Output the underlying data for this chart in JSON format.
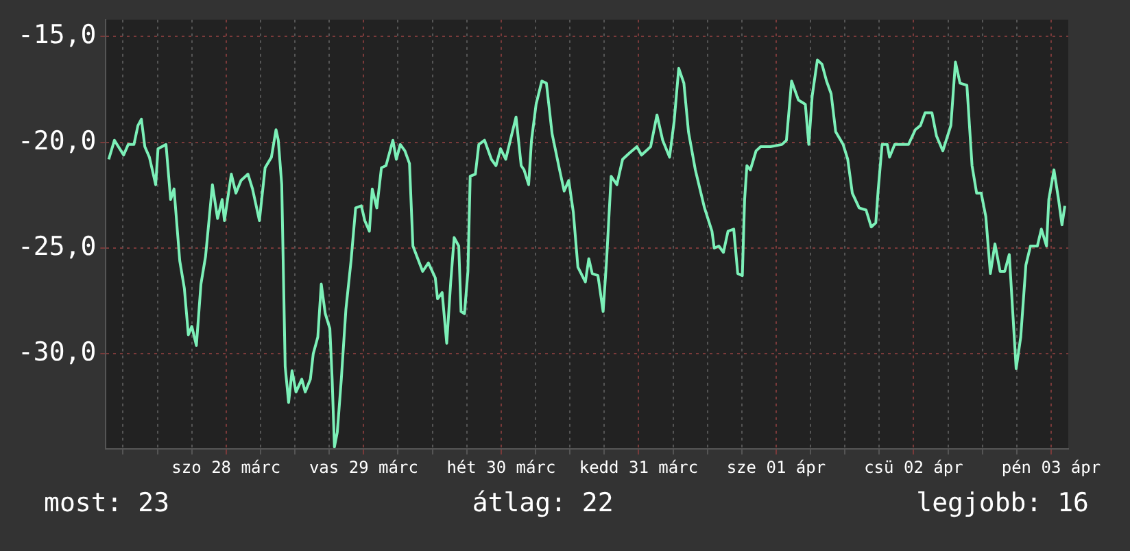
{
  "chart_data": {
    "type": "line",
    "x": [
      "--03-27T15:30",
      "--03-27T16:30",
      "--03-27T18:06",
      "--03-27T18:54",
      "--03-27T19:54",
      "--03-27T20:36",
      "--03-27T21:12",
      "--03-27T21:48",
      "--03-27T22:36",
      "--03-27T23:42",
      "--03-28T00:06",
      "--03-28T01:30",
      "--03-28T02:18",
      "--03-28T02:54",
      "--03-28T03:54",
      "--03-28T04:42",
      "--03-28T05:24",
      "--03-28T06:00",
      "--03-28T06:48",
      "--03-28T07:36",
      "--03-28T08:24",
      "--03-28T09:36",
      "--03-28T10:30",
      "--03-28T11:18",
      "--03-28T11:42",
      "--03-28T12:54",
      "--03-28T13:42",
      "--03-28T14:36",
      "--03-28T15:48",
      "--03-28T16:36",
      "--03-28T17:48",
      "--03-28T18:48",
      "--03-28T19:54",
      "--03-28T20:42",
      "--03-28T21:06",
      "--03-28T21:42",
      "--03-28T22:18",
      "--03-28T22:54",
      "--03-28T23:30",
      "--03-29T00:12",
      "--03-29T01:12",
      "--03-29T01:48",
      "--03-29T02:42",
      "--03-29T03:12",
      "--03-29T04:00",
      "--03-29T04:36",
      "--03-29T05:18",
      "--03-29T06:06",
      "--03-29T06:30",
      "--03-29T06:54",
      "--03-29T07:24",
      "--03-29T08:06",
      "--03-29T08:54",
      "--03-29T09:48",
      "--03-29T10:36",
      "--03-29T11:36",
      "--03-29T12:12",
      "--03-29T13:00",
      "--03-29T13:30",
      "--03-29T14:18",
      "--03-29T15:06",
      "--03-29T15:54",
      "--03-29T17:06",
      "--03-29T17:42",
      "--03-29T18:24",
      "--03-29T19:12",
      "--03-29T20:00",
      "--03-29T20:36",
      "--03-29T22:18",
      "--03-29T23:18",
      "--03-30T00:30",
      "--03-30T00:54",
      "--03-30T01:42",
      "--03-30T02:30",
      "--03-30T03:12",
      "--03-30T03:48",
      "--03-30T04:36",
      "--03-30T05:00",
      "--03-30T05:36",
      "--03-30T06:12",
      "--03-30T06:36",
      "--03-30T07:30",
      "--03-30T08:06",
      "--03-30T09:06",
      "--03-30T10:18",
      "--03-30T11:06",
      "--03-30T11:54",
      "--03-30T12:48",
      "--03-30T13:36",
      "--03-30T14:36",
      "--03-30T15:30",
      "--03-30T16:00",
      "--03-30T16:48",
      "--03-30T17:18",
      "--03-30T18:06",
      "--03-30T19:06",
      "--03-30T19:54",
      "--03-30T20:54",
      "--03-30T22:12",
      "--03-30T23:00",
      "--03-30T23:48",
      "--03-31T00:36",
      "--03-31T01:24",
      "--03-31T02:42",
      "--03-31T03:18",
      "--03-31T03:54",
      "--03-31T04:54",
      "--03-31T05:48",
      "--03-31T06:24",
      "--03-31T07:12",
      "--03-31T08:12",
      "--03-31T09:12",
      "--03-31T10:24",
      "--03-31T11:42",
      "--03-31T12:30",
      "--03-31T14:06",
      "--03-31T15:12",
      "--03-31T16:12",
      "--03-31T17:24",
      "--03-31T18:12",
      "--03-31T19:00",
      "--03-31T19:54",
      "--03-31T20:42",
      "--03-31T21:54",
      "--03-31T22:42",
      "--03-31T23:30",
      "--04-01T00:48",
      "--04-01T01:12",
      "--04-01T02:00",
      "--04-01T02:48",
      "--04-01T03:36",
      "--04-01T04:36",
      "--04-01T05:18",
      "--04-01T06:06",
      "--04-01T06:30",
      "--04-01T06:54",
      "--04-01T07:30",
      "--04-01T08:30",
      "--04-01T09:18",
      "--04-01T11:00",
      "--04-01T13:00",
      "--04-01T13:48",
      "--04-01T14:42",
      "--04-01T15:54",
      "--04-01T17:06",
      "--04-01T17:42",
      "--04-01T18:18",
      "--04-01T19:12",
      "--04-01T20:00",
      "--04-01T20:48",
      "--04-01T21:36",
      "--04-01T22:24",
      "--04-01T23:42",
      "--04-02T00:30",
      "--04-02T01:18",
      "--04-02T02:30",
      "--04-02T03:42",
      "--04-02T04:36",
      "--04-02T05:24",
      "--04-02T05:48",
      "--04-02T06:30",
      "--04-02T07:24",
      "--04-02T07:48",
      "--04-02T08:42",
      "--04-02T11:06",
      "--04-02T12:18",
      "--04-02T13:12",
      "--04-02T14:00",
      "--04-02T15:12",
      "--04-02T16:00",
      "--04-02T17:06",
      "--04-02T18:30",
      "--04-02T19:18",
      "--04-02T20:06",
      "--04-02T21:18",
      "--04-02T22:12",
      "--04-02T23:00",
      "--04-02T23:48",
      "--04-03T00:36",
      "--04-03T01:24",
      "--04-03T02:12",
      "--04-03T03:06",
      "--04-03T03:54",
      "--04-03T04:42",
      "--04-03T05:06",
      "--04-03T05:54",
      "--04-03T06:42",
      "--04-03T07:36",
      "--04-03T08:24",
      "--04-03T09:36",
      "--04-03T10:18",
      "--04-03T11:12",
      "--04-03T11:36",
      "--04-03T12:30",
      "--04-03T13:18",
      "--04-03T13:54",
      "--04-03T14:24"
    ],
    "series": [
      {
        "color": "#7cf0b8",
        "values": [
          -20.8,
          -19.9,
          -20.6,
          -20.1,
          -20.1,
          -19.2,
          -18.9,
          -20.2,
          -20.7,
          -22.0,
          -20.3,
          -20.1,
          -22.7,
          -22.2,
          -25.6,
          -26.9,
          -29.1,
          -28.7,
          -29.6,
          -26.7,
          -25.4,
          -22.0,
          -23.6,
          -22.7,
          -23.7,
          -21.5,
          -22.4,
          -21.8,
          -21.5,
          -22.2,
          -23.7,
          -21.2,
          -20.7,
          -19.4,
          -19.9,
          -22.0,
          -30.6,
          -32.3,
          -30.8,
          -31.8,
          -31.2,
          -31.8,
          -31.2,
          -30.0,
          -29.2,
          -26.7,
          -28.1,
          -28.8,
          -31.2,
          -34.4,
          -33.7,
          -31.2,
          -27.9,
          -25.6,
          -23.1,
          -23.0,
          -23.7,
          -24.2,
          -22.2,
          -23.1,
          -21.2,
          -21.1,
          -19.9,
          -20.8,
          -20.1,
          -20.4,
          -21.0,
          -24.9,
          -26.1,
          -25.7,
          -26.4,
          -27.4,
          -27.1,
          -29.5,
          -26.6,
          -24.5,
          -24.9,
          -28.0,
          -28.1,
          -26.1,
          -21.6,
          -21.5,
          -20.1,
          -19.9,
          -20.8,
          -21.1,
          -20.3,
          -20.8,
          -19.9,
          -18.8,
          -21.1,
          -21.3,
          -22.0,
          -19.9,
          -18.2,
          -17.1,
          -17.2,
          -19.6,
          -21.3,
          -22.3,
          -21.8,
          -23.3,
          -25.9,
          -26.6,
          -25.5,
          -26.2,
          -26.3,
          -28.0,
          -25.6,
          -21.6,
          -22.0,
          -20.8,
          -20.5,
          -20.2,
          -20.6,
          -20.2,
          -18.7,
          -19.9,
          -20.7,
          -19.0,
          -16.5,
          -17.2,
          -19.5,
          -21.3,
          -22.2,
          -23.1,
          -24.2,
          -25.0,
          -24.9,
          -25.2,
          -24.2,
          -24.1,
          -26.2,
          -26.3,
          -22.7,
          -21.1,
          -21.3,
          -20.4,
          -20.2,
          -20.2,
          -20.1,
          -19.9,
          -17.1,
          -18.0,
          -18.2,
          -20.1,
          -17.8,
          -16.1,
          -16.3,
          -17.1,
          -17.7,
          -19.5,
          -20.1,
          -20.8,
          -22.4,
          -23.1,
          -23.2,
          -24.0,
          -23.8,
          -22.3,
          -20.1,
          -20.1,
          -20.7,
          -20.1,
          -20.1,
          -19.4,
          -19.2,
          -18.6,
          -18.6,
          -19.7,
          -20.4,
          -19.2,
          -16.2,
          -17.2,
          -17.3,
          -21.1,
          -22.4,
          -22.4,
          -23.5,
          -26.2,
          -24.8,
          -26.1,
          -26.1,
          -25.3,
          -27.1,
          -30.7,
          -29.2,
          -25.8,
          -24.9,
          -24.9,
          -24.1,
          -24.9,
          -22.7,
          -21.3,
          -22.7,
          -23.9,
          -23.0
        ]
      }
    ],
    "xlim": [
      "--03-27T15:00",
      "--04-03T15:00"
    ],
    "xticks": [
      {
        "value": "--03-27T18:00",
        "label": null
      },
      {
        "value": "--03-28T00:00",
        "label": null
      },
      {
        "value": "--03-28T06:00",
        "label": null
      },
      {
        "value": "--03-28T12:00",
        "label": "szo 28 márc"
      },
      {
        "value": "--03-28T18:00",
        "label": null
      },
      {
        "value": "--03-29T00:00",
        "label": null
      },
      {
        "value": "--03-29T06:00",
        "label": null
      },
      {
        "value": "--03-29T12:00",
        "label": "vas 29 márc"
      },
      {
        "value": "--03-29T18:00",
        "label": null
      },
      {
        "value": "--03-30T00:00",
        "label": null
      },
      {
        "value": "--03-30T06:00",
        "label": null
      },
      {
        "value": "--03-30T12:00",
        "label": "hét 30 márc"
      },
      {
        "value": "--03-30T18:00",
        "label": null
      },
      {
        "value": "--03-31T00:00",
        "label": null
      },
      {
        "value": "--03-31T06:00",
        "label": null
      },
      {
        "value": "--03-31T12:00",
        "label": "kedd 31 márc"
      },
      {
        "value": "--03-31T18:00",
        "label": null
      },
      {
        "value": "--04-01T00:00",
        "label": null
      },
      {
        "value": "--04-01T06:00",
        "label": null
      },
      {
        "value": "--04-01T12:00",
        "label": "sze 01 ápr"
      },
      {
        "value": "--04-01T18:00",
        "label": null
      },
      {
        "value": "--04-02T00:00",
        "label": null
      },
      {
        "value": "--04-02T06:00",
        "label": null
      },
      {
        "value": "--04-02T12:00",
        "label": "csü 02 ápr"
      },
      {
        "value": "--04-02T18:00",
        "label": null
      },
      {
        "value": "--04-03T00:00",
        "label": null
      },
      {
        "value": "--04-03T06:00",
        "label": null
      },
      {
        "value": "--04-03T12:00",
        "label": "pén 03 ápr"
      }
    ],
    "ylim": [
      -34.5,
      -14.2
    ],
    "yticks": [
      {
        "value": -30,
        "label": "-30,0"
      },
      {
        "value": -25,
        "label": "-25,0"
      },
      {
        "value": -20,
        "label": "-20,0"
      },
      {
        "value": -15,
        "label": "-15,0"
      }
    ],
    "grid": true,
    "legend": false,
    "line_style": "solid",
    "annotations": [
      "most: 23",
      "átlag: 22",
      "legjobb: 16"
    ]
  }
}
